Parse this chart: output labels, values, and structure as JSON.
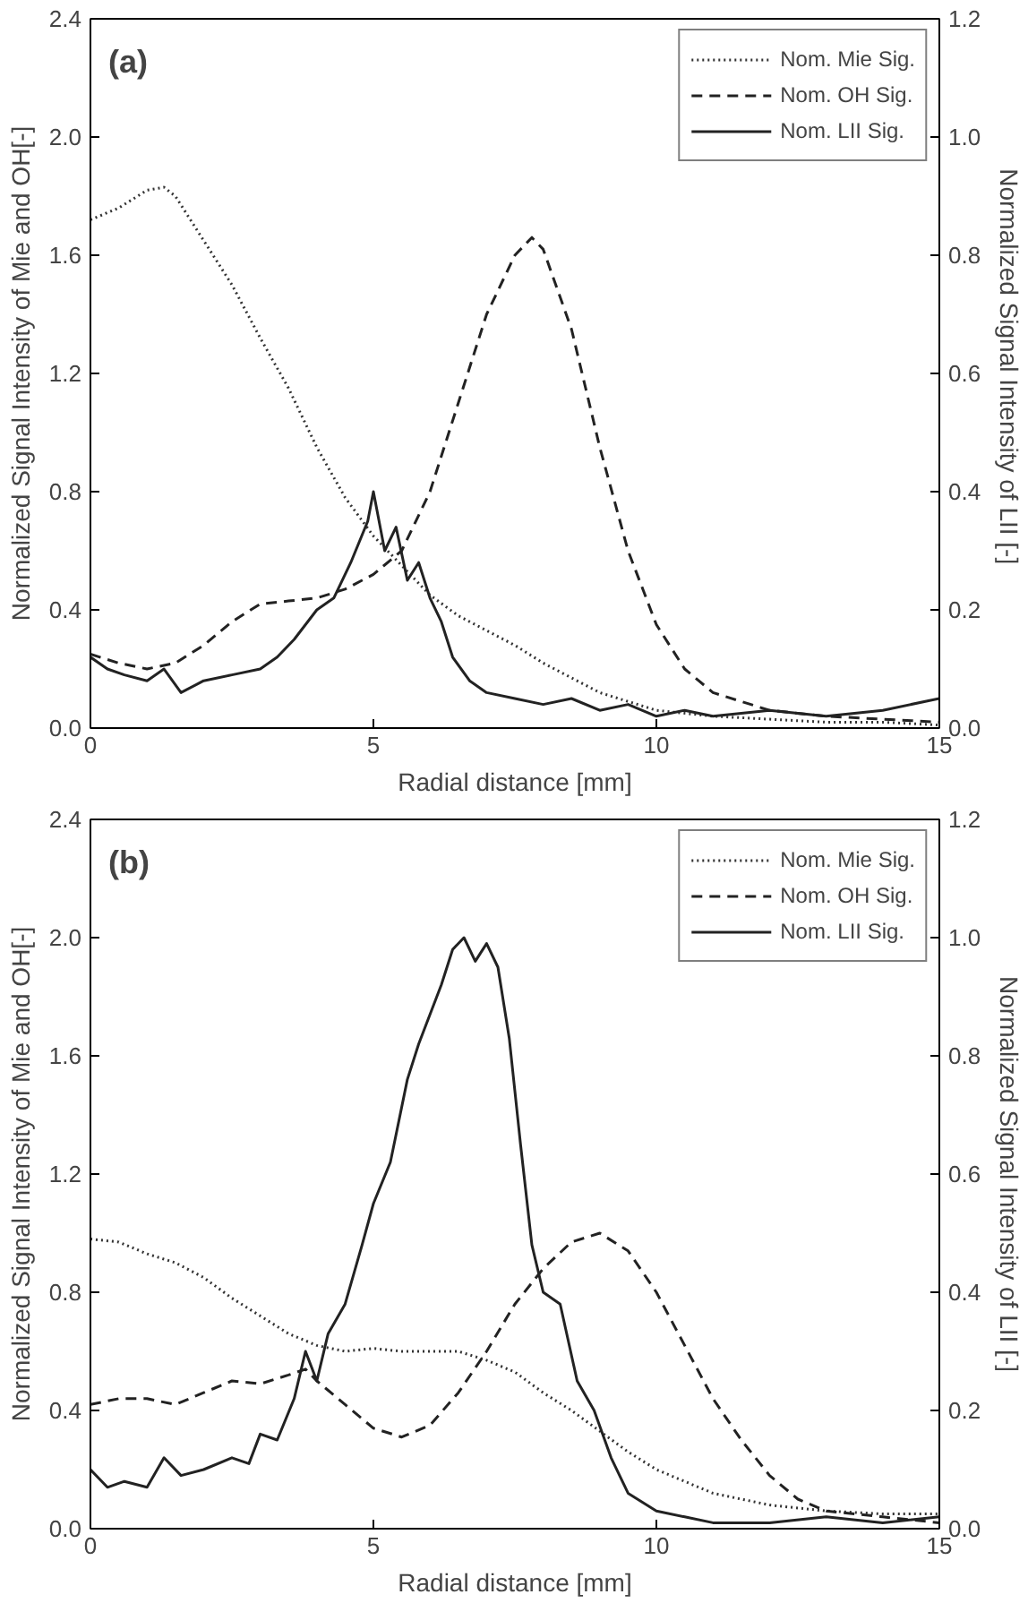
{
  "chart_data": [
    {
      "type": "line",
      "title": "(a)",
      "xlabel": "Radial distance [mm]",
      "ylabel": "Normalized Signal Intensity of Mie and OH[-]",
      "y2label": "Normalized Signal Intensity   of LII [-]",
      "xlim": [
        0,
        15
      ],
      "xticks": [
        0,
        5,
        10,
        15
      ],
      "ylim": [
        0,
        2.4
      ],
      "yticks": [
        {
          "value": 0,
          "label": "0.0"
        },
        {
          "value": 0.4,
          "label": "0.4"
        },
        {
          "value": 0.8,
          "label": "0.8"
        },
        {
          "value": 1.2,
          "label": "1.2"
        },
        {
          "value": 1.6,
          "label": "1.6"
        },
        {
          "value": 2.0,
          "label": "2.0"
        },
        {
          "value": 2.4,
          "label": "2.4"
        }
      ],
      "y2lim": [
        0,
        1.2
      ],
      "y2ticks": [
        {
          "value": 0,
          "label": "0.0"
        },
        {
          "value": 0.2,
          "label": "0.2"
        },
        {
          "value": 0.4,
          "label": "0.4"
        },
        {
          "value": 0.6,
          "label": "0.6"
        },
        {
          "value": 0.8,
          "label": "0.8"
        },
        {
          "value": 1.0,
          "label": "1.0"
        },
        {
          "value": 1.2,
          "label": "1.2"
        }
      ],
      "grid": false,
      "legend": "top right",
      "series": [
        {
          "name": "Nom. Mie Sig.",
          "color": "#333333",
          "line_style": "dotted",
          "x": [
            0,
            0.5,
            1.0,
            1.3,
            1.5,
            2.0,
            2.5,
            3.0,
            3.5,
            4.0,
            4.5,
            5.0,
            5.5,
            6.0,
            6.5,
            7.0,
            7.5,
            8.0,
            8.5,
            9.0,
            9.5,
            10,
            11,
            12,
            13,
            14,
            15
          ],
          "values": [
            1.72,
            1.76,
            1.82,
            1.83,
            1.8,
            1.65,
            1.5,
            1.32,
            1.15,
            0.95,
            0.78,
            0.65,
            0.55,
            0.45,
            0.38,
            0.33,
            0.28,
            0.22,
            0.17,
            0.12,
            0.09,
            0.06,
            0.04,
            0.03,
            0.02,
            0.02,
            0.01
          ]
        },
        {
          "name": "Nom. OH Sig.",
          "color": "#222222",
          "line_style": "dashed",
          "x": [
            0,
            0.5,
            1,
            1.5,
            2,
            2.5,
            3,
            3.5,
            4,
            4.5,
            5,
            5.5,
            6,
            6.5,
            7,
            7.5,
            7.8,
            8,
            8.5,
            9,
            9.5,
            10,
            10.5,
            11,
            12,
            13,
            14,
            15
          ],
          "values": [
            0.25,
            0.22,
            0.2,
            0.22,
            0.28,
            0.36,
            0.42,
            0.43,
            0.44,
            0.47,
            0.52,
            0.6,
            0.8,
            1.1,
            1.4,
            1.6,
            1.66,
            1.62,
            1.35,
            0.95,
            0.6,
            0.35,
            0.2,
            0.12,
            0.06,
            0.04,
            0.03,
            0.02
          ]
        },
        {
          "name": "Nom. LII Sig.",
          "color": "#222222",
          "line_style": "solid",
          "axis": "y2",
          "x": [
            0,
            0.3,
            0.6,
            1,
            1.3,
            1.6,
            2,
            2.5,
            3,
            3.3,
            3.6,
            4,
            4.3,
            4.6,
            4.9,
            5.0,
            5.2,
            5.4,
            5.6,
            5.8,
            6.0,
            6.2,
            6.4,
            6.7,
            7,
            7.5,
            8,
            8.5,
            9,
            9.5,
            10,
            10.5,
            11,
            12,
            13,
            14,
            15
          ],
          "values": [
            0.12,
            0.1,
            0.09,
            0.08,
            0.1,
            0.06,
            0.08,
            0.09,
            0.1,
            0.12,
            0.15,
            0.2,
            0.22,
            0.28,
            0.35,
            0.4,
            0.3,
            0.34,
            0.25,
            0.28,
            0.22,
            0.18,
            0.12,
            0.08,
            0.06,
            0.05,
            0.04,
            0.05,
            0.03,
            0.04,
            0.02,
            0.03,
            0.02,
            0.03,
            0.02,
            0.03,
            0.05
          ]
        }
      ]
    },
    {
      "type": "line",
      "title": "(b)",
      "xlabel": "Radial distance [mm]",
      "ylabel": "Normalized Signal Intensity of Mie and OH[-]",
      "y2label": "Normalized Signal Intensity of LII [-]",
      "xlim": [
        0,
        15
      ],
      "xticks": [
        0,
        5,
        10,
        15
      ],
      "ylim": [
        0,
        2.4
      ],
      "yticks": [
        {
          "value": 0,
          "label": "0.0"
        },
        {
          "value": 0.4,
          "label": "0.4"
        },
        {
          "value": 0.8,
          "label": "0.8"
        },
        {
          "value": 1.2,
          "label": "1.2"
        },
        {
          "value": 1.6,
          "label": "1.6"
        },
        {
          "value": 2.0,
          "label": "2.0"
        },
        {
          "value": 2.4,
          "label": "2.4"
        }
      ],
      "y2lim": [
        0,
        1.2
      ],
      "y2ticks": [
        {
          "value": 0,
          "label": "0.0"
        },
        {
          "value": 0.2,
          "label": "0.2"
        },
        {
          "value": 0.4,
          "label": "0.4"
        },
        {
          "value": 0.6,
          "label": "0.6"
        },
        {
          "value": 0.8,
          "label": "0.8"
        },
        {
          "value": 1.0,
          "label": "1.0"
        },
        {
          "value": 1.2,
          "label": "1.2"
        }
      ],
      "grid": false,
      "legend": "top right",
      "series": [
        {
          "name": "Nom. Mie Sig.",
          "color": "#333333",
          "line_style": "dotted",
          "x": [
            0,
            0.5,
            1,
            1.5,
            2,
            2.5,
            3,
            3.5,
            4,
            4.5,
            5,
            5.5,
            6,
            6.5,
            7,
            7.5,
            8,
            8.5,
            9,
            9.5,
            10,
            10.5,
            11,
            12,
            13,
            14,
            15
          ],
          "values": [
            0.98,
            0.97,
            0.93,
            0.9,
            0.85,
            0.78,
            0.72,
            0.66,
            0.62,
            0.6,
            0.61,
            0.6,
            0.6,
            0.6,
            0.57,
            0.53,
            0.46,
            0.4,
            0.33,
            0.26,
            0.2,
            0.16,
            0.12,
            0.08,
            0.06,
            0.05,
            0.05
          ]
        },
        {
          "name": "Nom. OH Sig.",
          "color": "#222222",
          "line_style": "dashed",
          "x": [
            0,
            0.5,
            1,
            1.5,
            2,
            2.5,
            3,
            3.5,
            3.8,
            4,
            4.5,
            5,
            5.5,
            6,
            6.5,
            7,
            7.5,
            8,
            8.5,
            9,
            9.5,
            10,
            10.5,
            11,
            11.5,
            12,
            12.5,
            13,
            14,
            15
          ],
          "values": [
            0.42,
            0.44,
            0.44,
            0.42,
            0.46,
            0.5,
            0.49,
            0.52,
            0.54,
            0.5,
            0.42,
            0.34,
            0.31,
            0.35,
            0.46,
            0.6,
            0.76,
            0.88,
            0.97,
            1.0,
            0.94,
            0.8,
            0.62,
            0.44,
            0.3,
            0.18,
            0.1,
            0.06,
            0.04,
            0.02
          ]
        },
        {
          "name": "Nom. LII Sig.",
          "color": "#222222",
          "line_style": "solid",
          "axis": "y2",
          "x": [
            0,
            0.3,
            0.6,
            1,
            1.3,
            1.6,
            2,
            2.5,
            2.8,
            3,
            3.3,
            3.6,
            3.8,
            4,
            4.2,
            4.5,
            4.8,
            5,
            5.3,
            5.6,
            5.8,
            6,
            6.2,
            6.4,
            6.6,
            6.8,
            7.0,
            7.2,
            7.4,
            7.6,
            7.8,
            8.0,
            8.3,
            8.6,
            8.9,
            9.2,
            9.5,
            10,
            10.5,
            11,
            12,
            13,
            14,
            15
          ],
          "values": [
            0.1,
            0.07,
            0.08,
            0.07,
            0.12,
            0.09,
            0.1,
            0.12,
            0.11,
            0.16,
            0.15,
            0.22,
            0.3,
            0.25,
            0.33,
            0.38,
            0.48,
            0.55,
            0.62,
            0.76,
            0.82,
            0.87,
            0.92,
            0.98,
            1.0,
            0.96,
            0.99,
            0.95,
            0.83,
            0.65,
            0.48,
            0.4,
            0.38,
            0.25,
            0.2,
            0.12,
            0.06,
            0.03,
            0.02,
            0.01,
            0.01,
            0.02,
            0.01,
            0.02
          ]
        }
      ]
    }
  ]
}
